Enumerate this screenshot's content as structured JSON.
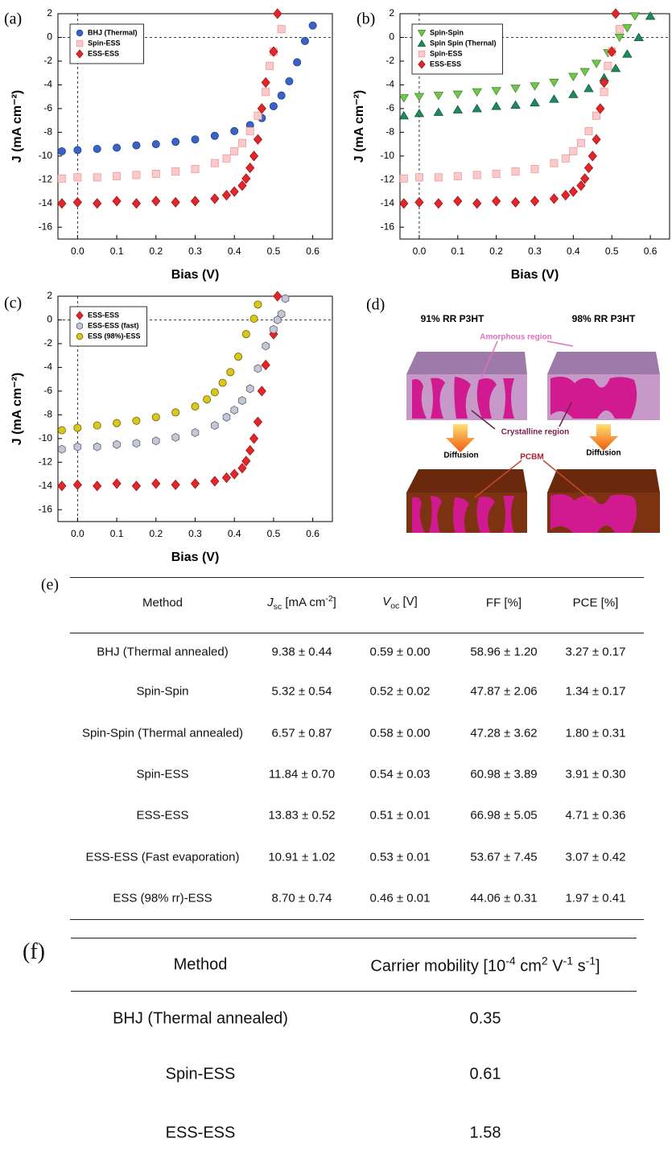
{
  "chart_data": [
    {
      "type": "scatter",
      "panel_label": "(a)",
      "xlabel": "Bias (V)",
      "ylabel": "J (mA cm⁻²)",
      "xlim": [
        -0.05,
        0.65
      ],
      "ylim": [
        -17,
        2
      ],
      "xticks": [
        {
          "value": 0,
          "label": "0.0"
        },
        0.1,
        0.2,
        0.3,
        0.4,
        0.5,
        0.6
      ],
      "yticks": [
        2,
        0,
        -2,
        -4,
        -6,
        -8,
        -10,
        -12,
        -14,
        -16
      ],
      "zero_lines": true,
      "legend": "upper left",
      "series": [
        {
          "name": "BHJ (Thermal)",
          "marker": "circle",
          "color": "#3b63c4",
          "edgecolor": "#1f3f8f",
          "x": [
            -0.04,
            0,
            0.05,
            0.1,
            0.15,
            0.2,
            0.25,
            0.3,
            0.35,
            0.4,
            0.44,
            0.47,
            0.5,
            0.52,
            0.54,
            0.56,
            0.58,
            0.6
          ],
          "values": [
            -9.6,
            -9.5,
            -9.4,
            -9.3,
            -9.1,
            -9.0,
            -8.8,
            -8.6,
            -8.3,
            -7.9,
            -7.4,
            -6.8,
            -5.8,
            -4.9,
            -3.7,
            -2.1,
            -0.3,
            1.0
          ]
        },
        {
          "name": "Spin-ESS",
          "marker": "square",
          "color": "#fbcaca",
          "edgecolor": "#f09a9a",
          "x": [
            -0.04,
            0,
            0.05,
            0.1,
            0.15,
            0.2,
            0.25,
            0.3,
            0.35,
            0.38,
            0.4,
            0.42,
            0.44,
            0.46,
            0.48,
            0.49,
            0.5,
            0.52
          ],
          "values": [
            -11.9,
            -11.8,
            -11.8,
            -11.7,
            -11.6,
            -11.5,
            -11.3,
            -11.1,
            -10.6,
            -10.2,
            -9.6,
            -8.9,
            -7.9,
            -6.6,
            -4.6,
            -2.4,
            -1.2,
            0.7
          ]
        },
        {
          "name": "ESS-ESS",
          "marker": "diamond",
          "color": "#e3262a",
          "edgecolor": "#9e1418",
          "x": [
            -0.04,
            0,
            0.05,
            0.1,
            0.15,
            0.2,
            0.25,
            0.3,
            0.35,
            0.38,
            0.4,
            0.42,
            0.43,
            0.44,
            0.45,
            0.46,
            0.47,
            0.48,
            0.5,
            0.51
          ],
          "values": [
            -14.0,
            -13.9,
            -14.0,
            -13.8,
            -14.0,
            -13.8,
            -13.9,
            -13.8,
            -13.6,
            -13.3,
            -13.0,
            -12.5,
            -11.9,
            -11.0,
            -10.0,
            -8.6,
            -6.0,
            -3.8,
            -1.2,
            2.0
          ]
        }
      ]
    },
    {
      "type": "scatter",
      "panel_label": "(b)",
      "xlabel": "Bias (V)",
      "ylabel": "J (mA cm⁻²)",
      "xlim": [
        -0.05,
        0.65
      ],
      "ylim": [
        -17,
        2
      ],
      "xticks": [
        {
          "value": 0,
          "label": "0.0"
        },
        0.1,
        0.2,
        0.3,
        0.4,
        0.5,
        0.6
      ],
      "yticks": [
        2,
        0,
        -2,
        -4,
        -6,
        -8,
        -10,
        -12,
        -14,
        -16
      ],
      "zero_lines": true,
      "legend": "upper left",
      "series": [
        {
          "name": "Spin-Spin",
          "marker": "triangle-down",
          "color": "#72c64c",
          "edgecolor": "#3f8a2a",
          "x": [
            -0.04,
            0,
            0.05,
            0.1,
            0.15,
            0.2,
            0.25,
            0.3,
            0.35,
            0.4,
            0.43,
            0.46,
            0.49,
            0.52,
            0.54,
            0.56
          ],
          "values": [
            -5.1,
            -5.0,
            -4.9,
            -4.8,
            -4.6,
            -4.5,
            -4.3,
            -4.1,
            -3.8,
            -3.3,
            -2.9,
            -2.2,
            -1.3,
            0.0,
            0.8,
            1.8
          ]
        },
        {
          "name": "Spin Spin (Thernal)",
          "marker": "triangle-up",
          "color": "#1f8a5c",
          "edgecolor": "#0f5a38",
          "x": [
            -0.04,
            0,
            0.05,
            0.1,
            0.15,
            0.2,
            0.25,
            0.3,
            0.35,
            0.4,
            0.44,
            0.48,
            0.51,
            0.54,
            0.57,
            0.6
          ],
          "values": [
            -6.6,
            -6.4,
            -6.3,
            -6.1,
            -6.0,
            -5.8,
            -5.7,
            -5.5,
            -5.2,
            -4.8,
            -4.3,
            -3.4,
            -2.6,
            -1.4,
            0.0,
            1.8
          ]
        },
        {
          "name": "Spin-ESS",
          "marker": "square",
          "color": "#fbcaca",
          "edgecolor": "#f09a9a",
          "x": [
            -0.04,
            0,
            0.05,
            0.1,
            0.15,
            0.2,
            0.25,
            0.3,
            0.35,
            0.38,
            0.4,
            0.42,
            0.44,
            0.46,
            0.48,
            0.49,
            0.5,
            0.52
          ],
          "values": [
            -11.9,
            -11.8,
            -11.8,
            -11.7,
            -11.6,
            -11.5,
            -11.3,
            -11.1,
            -10.6,
            -10.2,
            -9.6,
            -8.9,
            -7.9,
            -6.6,
            -4.6,
            -2.4,
            -1.2,
            0.7
          ]
        },
        {
          "name": "ESS-ESS",
          "marker": "diamond",
          "color": "#e3262a",
          "edgecolor": "#9e1418",
          "x": [
            -0.04,
            0,
            0.05,
            0.1,
            0.15,
            0.2,
            0.25,
            0.3,
            0.35,
            0.38,
            0.4,
            0.42,
            0.43,
            0.44,
            0.45,
            0.46,
            0.47,
            0.48,
            0.5,
            0.51
          ],
          "values": [
            -14.0,
            -13.9,
            -14.0,
            -13.8,
            -14.0,
            -13.8,
            -13.9,
            -13.8,
            -13.6,
            -13.3,
            -13.0,
            -12.5,
            -11.9,
            -11.0,
            -10.0,
            -8.6,
            -6.0,
            -3.8,
            -1.2,
            2.0
          ]
        }
      ]
    },
    {
      "type": "scatter",
      "panel_label": "(c)",
      "xlabel": "Bias (V)",
      "ylabel": "J (mA cm⁻²)",
      "xlim": [
        -0.05,
        0.65
      ],
      "ylim": [
        -17,
        2
      ],
      "xticks": [
        {
          "value": 0,
          "label": "0.0"
        },
        0.1,
        0.2,
        0.3,
        0.4,
        0.5,
        0.6
      ],
      "yticks": [
        2,
        0,
        -2,
        -4,
        -6,
        -8,
        -10,
        -12,
        -14,
        -16
      ],
      "zero_lines": true,
      "legend": "upper left",
      "series": [
        {
          "name": "ESS-ESS",
          "marker": "diamond",
          "color": "#e3262a",
          "edgecolor": "#9e1418",
          "x": [
            -0.04,
            0,
            0.05,
            0.1,
            0.15,
            0.2,
            0.25,
            0.3,
            0.35,
            0.38,
            0.4,
            0.42,
            0.43,
            0.44,
            0.45,
            0.46,
            0.47,
            0.48,
            0.5,
            0.51
          ],
          "values": [
            -14.0,
            -13.9,
            -14.0,
            -13.8,
            -14.0,
            -13.8,
            -13.9,
            -13.8,
            -13.6,
            -13.3,
            -13.0,
            -12.5,
            -11.9,
            -11.0,
            -10.0,
            -8.6,
            -6.0,
            -3.8,
            -1.2,
            2.0
          ]
        },
        {
          "name": "ESS-ESS (fast)",
          "marker": "hexagon",
          "color": "#c4c7d6",
          "edgecolor": "#5a5e70",
          "x": [
            -0.04,
            0,
            0.05,
            0.1,
            0.15,
            0.2,
            0.25,
            0.3,
            0.35,
            0.38,
            0.4,
            0.42,
            0.44,
            0.46,
            0.48,
            0.5,
            0.51,
            0.52,
            0.53
          ],
          "values": [
            -10.9,
            -10.7,
            -10.7,
            -10.5,
            -10.4,
            -10.2,
            -9.9,
            -9.5,
            -8.9,
            -8.2,
            -7.6,
            -6.8,
            -5.8,
            -4.1,
            -2.2,
            -0.8,
            0.0,
            0.5,
            1.8
          ]
        },
        {
          "name": "ESS (98%)-ESS",
          "marker": "circle",
          "color": "#d8c81c",
          "edgecolor": "#6e6408",
          "x": [
            -0.04,
            0,
            0.05,
            0.1,
            0.15,
            0.2,
            0.25,
            0.3,
            0.33,
            0.35,
            0.37,
            0.39,
            0.41,
            0.43,
            0.45,
            0.46
          ],
          "values": [
            -9.3,
            -9.1,
            -8.9,
            -8.7,
            -8.5,
            -8.2,
            -7.8,
            -7.3,
            -6.7,
            -6.1,
            -5.3,
            -4.4,
            -3.1,
            -1.2,
            0.1,
            1.3
          ]
        }
      ]
    }
  ],
  "diagram": {
    "panel_label": "(d)",
    "left_title": "91% RR P3HT",
    "right_title": "98% RR P3HT",
    "amorphous": "Amorphous region",
    "crystalline": "Crystalline region",
    "diffusion_left": "Diffusion",
    "diffusion_right": "Diffusion",
    "pcbm": "PCBM"
  },
  "table_e": {
    "label": "(e)",
    "header": {
      "method": "Method",
      "jsc": [
        "J",
        "sc",
        " [mA cm",
        "-2",
        "]"
      ],
      "voc": [
        "V",
        "oc",
        " [V]"
      ],
      "ff": "FF [%]",
      "pce": "PCE [%]"
    },
    "rows": [
      [
        "BHJ (Thermal annealed)",
        "9.38 ± 0.44",
        "0.59 ± 0.00",
        "58.96 ± 1.20",
        "3.27 ± 0.17"
      ],
      [
        "Spin-Spin",
        "5.32 ± 0.54",
        "0.52 ± 0.02",
        "47.87 ± 2.06",
        "1.34 ± 0.17"
      ],
      [
        "Spin-Spin (Thermal annealed)",
        "6.57 ± 0.87",
        "0.58 ± 0.00",
        "47.28 ± 3.62",
        "1.80 ± 0.31"
      ],
      [
        "Spin-ESS",
        "11.84 ± 0.70",
        "0.54 ± 0.03",
        "60.98 ± 3.89",
        "3.91 ± 0.30"
      ],
      [
        "ESS-ESS",
        "13.83 ± 0.52",
        "0.51 ± 0.01",
        "66.98 ± 5.05",
        "4.71 ± 0.36"
      ],
      [
        "ESS-ESS (Fast evaporation)",
        "10.91 ± 1.02",
        "0.53 ± 0.01",
        "53.67 ± 7.45",
        "3.07 ± 0.42"
      ],
      [
        "ESS (98% rr)-ESS",
        "8.70 ± 0.74",
        "0.46 ± 0.01",
        "44.06 ± 0.31",
        "1.97 ± 0.41"
      ]
    ]
  },
  "table_f": {
    "label": "(f)",
    "header": {
      "method": "Method",
      "mobility": [
        "Carrier mobility [10",
        "-4",
        " cm",
        "2",
        " V",
        "-1",
        " s",
        "-1",
        "]"
      ]
    },
    "rows": [
      [
        "BHJ (Thermal annealed)",
        0.35
      ],
      [
        "Spin-ESS",
        0.61
      ],
      [
        "ESS-ESS",
        1.58
      ]
    ]
  }
}
